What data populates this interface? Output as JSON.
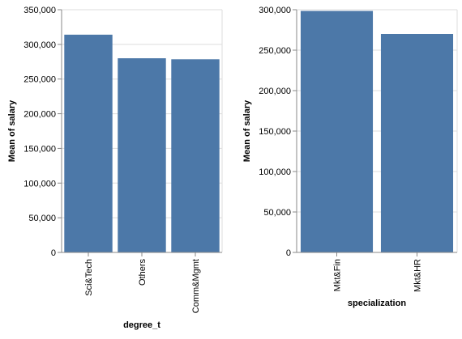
{
  "chart_data": [
    {
      "type": "bar",
      "xlabel": "degree_t",
      "ylabel": "Mean of salary",
      "categories": [
        "Sci&Tech",
        "Others",
        "Comm&Mgmt"
      ],
      "values": [
        314000,
        280000,
        278500
      ],
      "ylim": [
        0,
        350000
      ],
      "yticks": [
        "0",
        "50,000",
        "100,000",
        "150,000",
        "200,000",
        "250,000",
        "300,000",
        "350,000"
      ],
      "grid": true,
      "color": "#4c78a8"
    },
    {
      "type": "bar",
      "xlabel": "specialization",
      "ylabel": "Mean of salary",
      "categories": [
        "Mkt&Fin",
        "Mkt&HR"
      ],
      "values": [
        298500,
        270000
      ],
      "ylim": [
        0,
        300000
      ],
      "yticks": [
        "0",
        "50,000",
        "100,000",
        "150,000",
        "200,000",
        "250,000",
        "300,000"
      ],
      "grid": true,
      "color": "#4c78a8"
    }
  ]
}
